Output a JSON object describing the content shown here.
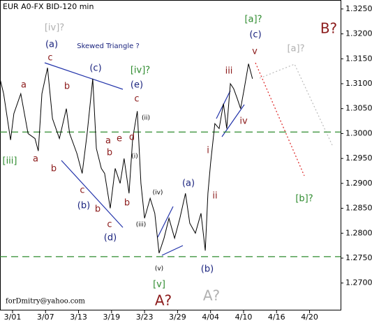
{
  "chart_data": {
    "type": "line",
    "title": "EUR A0-FX BID-120 min",
    "footer": "forDmitry@yahoo.com",
    "series": [
      {
        "name": "EUR",
        "color": "#000000",
        "x": [
          0.62,
          0.73,
          0.94,
          1.04,
          1.25,
          1.47,
          1.68,
          1.78,
          1.89,
          2.06,
          2.21,
          2.42,
          2.63,
          2.73,
          2.95,
          3.11,
          3.26,
          3.43,
          3.54,
          3.69,
          3.79,
          3.96,
          4.11,
          4.26,
          4.38,
          4.53,
          4.64,
          4.78,
          4.89,
          5.0,
          5.17,
          5.31,
          5.44,
          5.59,
          5.74,
          5.91,
          6.07,
          6.24,
          6.37,
          6.54,
          6.71,
          6.84,
          6.92,
          7.0,
          7.13,
          7.26,
          7.39,
          7.49,
          7.6,
          7.7,
          7.81,
          7.91,
          8.02,
          8.15,
          8.27
        ],
        "values": [
          1.311,
          1.308,
          1.2987,
          1.304,
          1.308,
          1.3,
          1.299,
          1.2965,
          1.308,
          1.3132,
          1.303,
          1.299,
          1.305,
          1.3,
          1.296,
          1.292,
          1.3,
          1.311,
          1.297,
          1.293,
          1.292,
          1.285,
          1.293,
          1.29,
          1.295,
          1.288,
          1.299,
          1.3045,
          1.29,
          1.283,
          1.287,
          1.284,
          1.276,
          1.279,
          1.283,
          1.279,
          1.283,
          1.288,
          1.282,
          1.28,
          1.284,
          1.2765,
          1.288,
          1.294,
          1.302,
          1.301,
          1.306,
          1.301,
          1.31,
          1.309,
          1.307,
          1.305,
          1.309,
          1.314,
          1.311
        ]
      }
    ],
    "levels": [
      1.3003,
      1.2753
    ],
    "level_color": "#2e8b2e",
    "xlim": [
      0.62,
      10.94
    ],
    "xticks": [
      {
        "value": 1,
        "label": "3/01"
      },
      {
        "value": 2,
        "label": "3/07"
      },
      {
        "value": 3,
        "label": "3/13"
      },
      {
        "value": 4,
        "label": "3/19"
      },
      {
        "value": 5,
        "label": "3/23"
      },
      {
        "value": 6,
        "label": "3/29"
      },
      {
        "value": 7,
        "label": "4/04"
      },
      {
        "value": 8,
        "label": "4/10"
      },
      {
        "value": 9,
        "label": "4/16"
      },
      {
        "value": 10,
        "label": "4/20"
      }
    ],
    "ylim": [
      1.2645,
      1.3268
    ],
    "yticks": [
      {
        "value": 1.325,
        "label": "1.3250"
      },
      {
        "value": 1.32,
        "label": "1.3200"
      },
      {
        "value": 1.315,
        "label": "1.3150"
      },
      {
        "value": 1.31,
        "label": "1.3100"
      },
      {
        "value": 1.305,
        "label": "1.3050"
      },
      {
        "value": 1.3,
        "label": "1.3000"
      },
      {
        "value": 1.295,
        "label": "1.2950"
      },
      {
        "value": 1.29,
        "label": "1.2900"
      },
      {
        "value": 1.285,
        "label": "1.2850"
      },
      {
        "value": 1.28,
        "label": "1.2800"
      },
      {
        "value": 1.275,
        "label": "1.2750"
      },
      {
        "value": 1.27,
        "label": "1.2700"
      }
    ],
    "annotations": [
      "[iv]?",
      "(a)",
      "Skewed Triangle ?",
      "c",
      "(c)",
      "[iv]?",
      "a",
      "b",
      "(e)",
      "c",
      "(ii)",
      "a",
      "e",
      "d",
      "b",
      "(i)",
      "[iii]",
      "a",
      "b",
      "c",
      "(b)",
      "b",
      "b",
      "c",
      "(d)",
      "(iii)",
      "(iv)",
      "(a)",
      "ii",
      "i",
      "iii",
      "iv",
      "v",
      "(c)",
      "[a]?",
      "[a]?",
      "B?",
      "[b]?",
      "(v)",
      "(b)",
      "[v]",
      "A?",
      "A?"
    ]
  }
}
